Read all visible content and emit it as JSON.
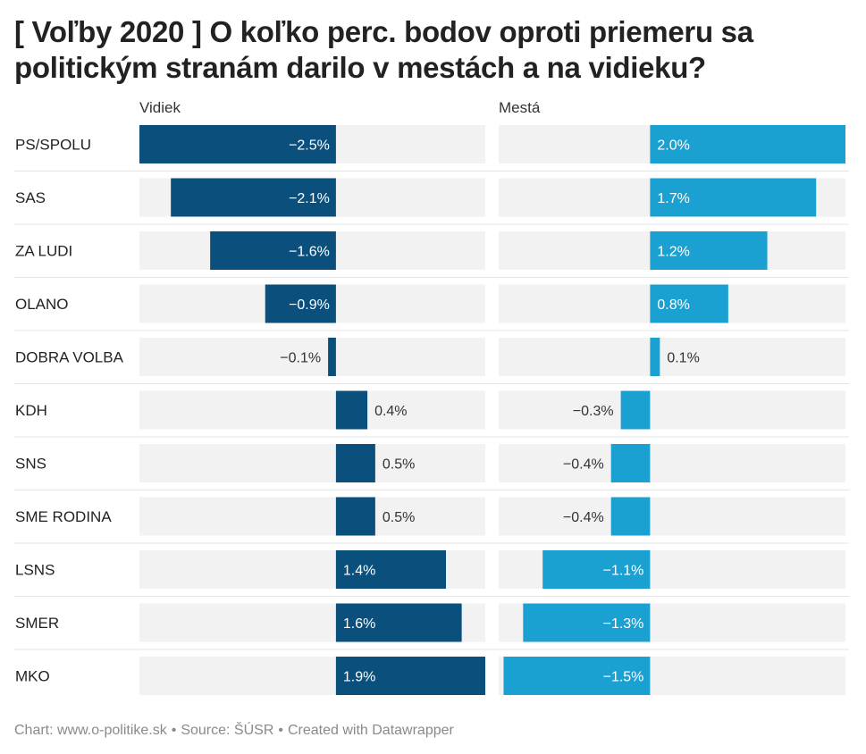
{
  "chart_data": {
    "type": "bar",
    "title": "[ Voľby 2020 ] O koľko perc. bodov oproti priemeru sa politickým stranám darilo v mestách a na vidieku?",
    "categories": [
      "PS/SPOLU",
      "SAS",
      "ZA LUDI",
      "OLANO",
      "DOBRA VOLBA",
      "KDH",
      "SNS",
      "SME RODINA",
      "LSNS",
      "SMER",
      "MKO"
    ],
    "series": [
      {
        "name": "Vidiek",
        "color": "#0b4f7c",
        "values": [
          -2.5,
          -2.1,
          -1.6,
          -0.9,
          -0.1,
          0.4,
          0.5,
          0.5,
          1.4,
          1.6,
          1.9
        ],
        "labels": [
          "−2.5%",
          "−2.1%",
          "−1.6%",
          "−0.9%",
          "−0.1%",
          "0.4%",
          "0.5%",
          "0.5%",
          "1.4%",
          "1.6%",
          "1.9%"
        ],
        "range": [
          -2.5,
          1.9
        ]
      },
      {
        "name": "Mestá",
        "color": "#1ba1d1",
        "values": [
          2.0,
          1.7,
          1.2,
          0.8,
          0.1,
          -0.3,
          -0.4,
          -0.4,
          -1.1,
          -1.3,
          -1.5
        ],
        "labels": [
          "2.0%",
          "1.7%",
          "1.2%",
          "0.8%",
          "0.1%",
          "−0.3%",
          "−0.4%",
          "−0.4%",
          "−1.1%",
          "−1.3%",
          "−1.5%"
        ],
        "range": [
          -1.55,
          2.0
        ]
      }
    ],
    "unit": "%"
  },
  "footer": {
    "chart": "Chart: www.o-politike.sk",
    "source": "Source: ŠÚSR",
    "created": "Created with Datawrapper",
    "separator": "•"
  }
}
